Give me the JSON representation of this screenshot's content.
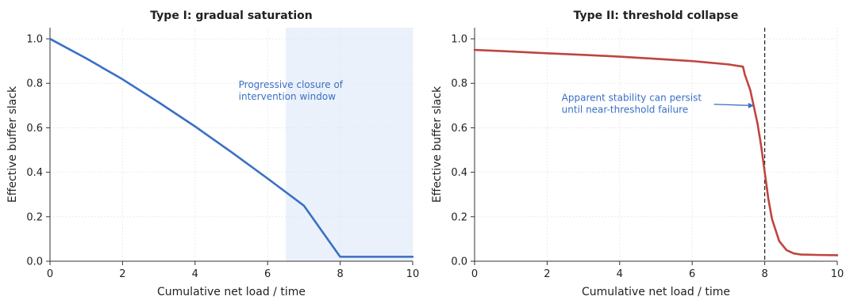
{
  "chart_data": [
    {
      "type": "line",
      "title": "Type I: gradual saturation",
      "xlabel": "Cumulative net load / time",
      "ylabel": "Effective buffer slack",
      "xlim": [
        0,
        10
      ],
      "ylim": [
        0,
        1.05
      ],
      "xticks": [
        0,
        2,
        4,
        6,
        8,
        10
      ],
      "yticks": [
        0.0,
        0.2,
        0.4,
        0.6,
        0.8,
        1.0
      ],
      "xtick_labels": [
        "0",
        "2",
        "4",
        "6",
        "8",
        "10"
      ],
      "ytick_labels": [
        "0.0",
        "0.2",
        "0.4",
        "0.6",
        "0.8",
        "1.0"
      ],
      "grid": true,
      "series": [
        {
          "color": "#3a6fc4",
          "x": [
            0,
            1,
            2,
            3,
            4,
            5,
            6,
            7,
            8,
            8.01,
            9,
            10
          ],
          "y": [
            1.0,
            0.912,
            0.818,
            0.714,
            0.606,
            0.491,
            0.372,
            0.25,
            0.02,
            0.02,
            0.02,
            0.02
          ]
        }
      ],
      "shaded_region": {
        "x_start": 6.5,
        "x_end": 10,
        "color": "#eaf1fa"
      },
      "annotations": [
        {
          "lines": [
            "Progressive closure of",
            "intervention window"
          ],
          "x": 5.2,
          "y": 0.78,
          "color": "#3a6fc4"
        }
      ]
    },
    {
      "type": "line",
      "title": "Type II: threshold collapse",
      "xlabel": "Cumulative net load / time",
      "ylabel": "Effective buffer slack",
      "xlim": [
        0,
        10
      ],
      "ylim": [
        0,
        1.05
      ],
      "xticks": [
        0,
        2,
        4,
        6,
        8,
        10
      ],
      "yticks": [
        0.0,
        0.2,
        0.4,
        0.6,
        0.8,
        1.0
      ],
      "xtick_labels": [
        "0",
        "2",
        "4",
        "6",
        "8",
        "10"
      ],
      "ytick_labels": [
        "0.0",
        "0.2",
        "0.4",
        "0.6",
        "0.8",
        "1.0"
      ],
      "grid": true,
      "series": [
        {
          "color": "#c0453f",
          "x": [
            0,
            1,
            2,
            3,
            4,
            5,
            6,
            7,
            7.4,
            7.45,
            7.6,
            7.8,
            7.9,
            8.0,
            8.1,
            8.2,
            8.4,
            8.6,
            8.8,
            9.0,
            9.5,
            10
          ],
          "y": [
            0.95,
            0.943,
            0.935,
            0.928,
            0.92,
            0.91,
            0.9,
            0.885,
            0.875,
            0.84,
            0.77,
            0.62,
            0.52,
            0.4,
            0.28,
            0.19,
            0.09,
            0.05,
            0.035,
            0.03,
            0.028,
            0.027
          ]
        }
      ],
      "threshold_line": {
        "x": 8.0,
        "style": "dashed",
        "color": "#222222"
      },
      "annotations": [
        {
          "lines": [
            "Apparent stability can persist",
            "until near-threshold failure"
          ],
          "x": 2.4,
          "y": 0.72,
          "arrow_to": {
            "x": 7.7,
            "y": 0.7
          },
          "color": "#3a6fc4"
        }
      ]
    }
  ]
}
